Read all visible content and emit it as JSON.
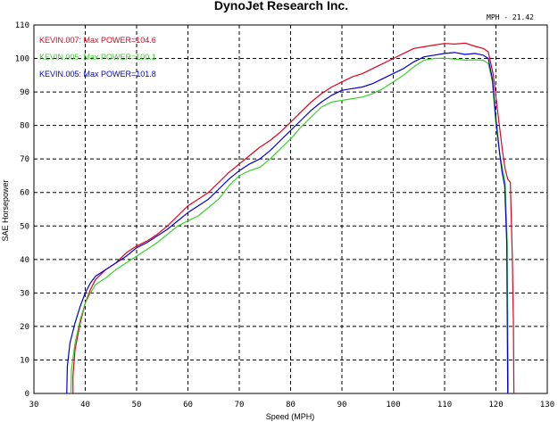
{
  "chart_data": {
    "type": "line",
    "title": "DynoJet Research Inc.",
    "note": "MPH - 21.42",
    "xlabel": "Speed (MPH)",
    "ylabel": "SAE Horsepower",
    "xlim": [
      30,
      130
    ],
    "ylim": [
      0,
      110
    ],
    "xticks": [
      30,
      40,
      50,
      60,
      70,
      80,
      90,
      100,
      110,
      120,
      130
    ],
    "yticks": [
      0,
      10,
      20,
      30,
      40,
      50,
      60,
      70,
      80,
      90,
      100,
      110
    ],
    "grid": true,
    "legend_position": "top-left",
    "series": [
      {
        "name": "KEVIN.007: Max POWER=104.6",
        "color": "#e0001c",
        "points": [
          [
            37.6,
            0
          ],
          [
            37.6,
            5
          ],
          [
            38,
            13
          ],
          [
            39,
            21
          ],
          [
            40,
            27
          ],
          [
            41,
            31
          ],
          [
            42,
            34
          ],
          [
            44,
            37
          ],
          [
            46,
            39
          ],
          [
            48,
            42
          ],
          [
            50,
            44
          ],
          [
            52,
            45.5
          ],
          [
            54,
            47.5
          ],
          [
            56,
            50
          ],
          [
            58,
            53
          ],
          [
            60,
            56
          ],
          [
            62,
            58
          ],
          [
            64,
            60
          ],
          [
            66,
            63
          ],
          [
            68,
            66
          ],
          [
            70,
            68.5
          ],
          [
            72,
            71
          ],
          [
            74,
            73.5
          ],
          [
            76,
            75.5
          ],
          [
            78,
            78
          ],
          [
            80,
            81
          ],
          [
            82,
            84
          ],
          [
            84,
            87
          ],
          [
            86,
            89.5
          ],
          [
            88,
            91.5
          ],
          [
            90,
            93
          ],
          [
            92,
            94.5
          ],
          [
            94,
            95.5
          ],
          [
            96,
            97
          ],
          [
            98,
            98.5
          ],
          [
            100,
            100
          ],
          [
            102,
            101.5
          ],
          [
            104,
            103
          ],
          [
            106,
            103.5
          ],
          [
            108,
            104
          ],
          [
            110,
            104.5
          ],
          [
            112,
            104.3
          ],
          [
            114,
            104.6
          ],
          [
            116,
            103.6
          ],
          [
            117.5,
            103
          ],
          [
            118.5,
            102
          ],
          [
            119.5,
            95
          ],
          [
            120.5,
            82
          ],
          [
            121.3,
            72
          ],
          [
            121.8,
            67
          ],
          [
            122.3,
            64
          ],
          [
            122.8,
            63
          ],
          [
            123.2,
            40
          ],
          [
            123.4,
            20
          ],
          [
            123.5,
            0
          ]
        ]
      },
      {
        "name": "KEVIN.005: Max POWER=100.1",
        "color": "#38d02c",
        "points": [
          [
            37.2,
            0
          ],
          [
            37.3,
            7
          ],
          [
            38,
            15
          ],
          [
            39,
            22
          ],
          [
            40,
            27
          ],
          [
            41,
            30
          ],
          [
            42,
            32.5
          ],
          [
            44,
            34.5
          ],
          [
            46,
            37
          ],
          [
            48,
            39
          ],
          [
            50,
            41
          ],
          [
            52,
            43
          ],
          [
            54,
            45
          ],
          [
            56,
            47.5
          ],
          [
            58,
            50
          ],
          [
            60,
            51.5
          ],
          [
            62,
            53
          ],
          [
            64,
            55.5
          ],
          [
            66,
            58
          ],
          [
            68,
            62
          ],
          [
            70,
            65
          ],
          [
            72,
            66.5
          ],
          [
            74,
            67.5
          ],
          [
            76,
            70
          ],
          [
            78,
            73
          ],
          [
            80,
            76
          ],
          [
            82,
            79.5
          ],
          [
            84,
            82.5
          ],
          [
            86,
            85.5
          ],
          [
            88,
            87
          ],
          [
            90,
            87.5
          ],
          [
            92,
            88
          ],
          [
            94,
            88.5
          ],
          [
            96,
            89.5
          ],
          [
            98,
            91
          ],
          [
            100,
            93
          ],
          [
            102,
            95
          ],
          [
            104,
            97.5
          ],
          [
            106,
            99.5
          ],
          [
            108,
            100
          ],
          [
            110,
            100.1
          ],
          [
            112,
            99.8
          ],
          [
            114,
            99.5
          ],
          [
            116,
            99.6
          ],
          [
            117.5,
            99.5
          ],
          [
            118.5,
            98.5
          ],
          [
            119.3,
            93
          ],
          [
            120,
            80
          ],
          [
            120.8,
            71
          ],
          [
            121.3,
            67
          ],
          [
            121.8,
            63
          ],
          [
            122.2,
            45
          ],
          [
            122.4,
            0
          ]
        ]
      },
      {
        "name": "KEVIN.005: Max POWER=101.8",
        "color": "#0000d0",
        "points": [
          [
            36.4,
            0
          ],
          [
            36.5,
            8
          ],
          [
            37,
            15
          ],
          [
            38,
            21
          ],
          [
            39,
            26
          ],
          [
            40,
            30
          ],
          [
            41,
            33
          ],
          [
            42,
            35
          ],
          [
            44,
            37
          ],
          [
            46,
            39
          ],
          [
            48,
            41
          ],
          [
            50,
            43.5
          ],
          [
            52,
            45
          ],
          [
            54,
            47
          ],
          [
            56,
            49
          ],
          [
            58,
            51.5
          ],
          [
            60,
            54
          ],
          [
            62,
            56
          ],
          [
            64,
            58
          ],
          [
            66,
            61
          ],
          [
            68,
            64
          ],
          [
            70,
            66.5
          ],
          [
            72,
            68.5
          ],
          [
            74,
            70
          ],
          [
            76,
            72.5
          ],
          [
            78,
            75.5
          ],
          [
            80,
            78.5
          ],
          [
            82,
            81.5
          ],
          [
            84,
            84.5
          ],
          [
            86,
            87
          ],
          [
            88,
            89
          ],
          [
            90,
            90.5
          ],
          [
            92,
            91
          ],
          [
            94,
            91.5
          ],
          [
            96,
            92.5
          ],
          [
            98,
            94
          ],
          [
            100,
            95.5
          ],
          [
            102,
            97
          ],
          [
            104,
            99
          ],
          [
            106,
            100.5
          ],
          [
            108,
            101
          ],
          [
            110,
            101.5
          ],
          [
            112,
            101.8
          ],
          [
            114,
            101.2
          ],
          [
            116,
            101.5
          ],
          [
            117.5,
            101
          ],
          [
            118.5,
            100
          ],
          [
            119.3,
            94
          ],
          [
            120,
            82
          ],
          [
            120.7,
            72
          ],
          [
            121.2,
            66
          ],
          [
            121.7,
            62
          ],
          [
            122.1,
            45
          ],
          [
            122.3,
            0
          ]
        ]
      }
    ],
    "legend_colors": [
      "#e0001c",
      "#38d02c",
      "#0000d0"
    ]
  }
}
